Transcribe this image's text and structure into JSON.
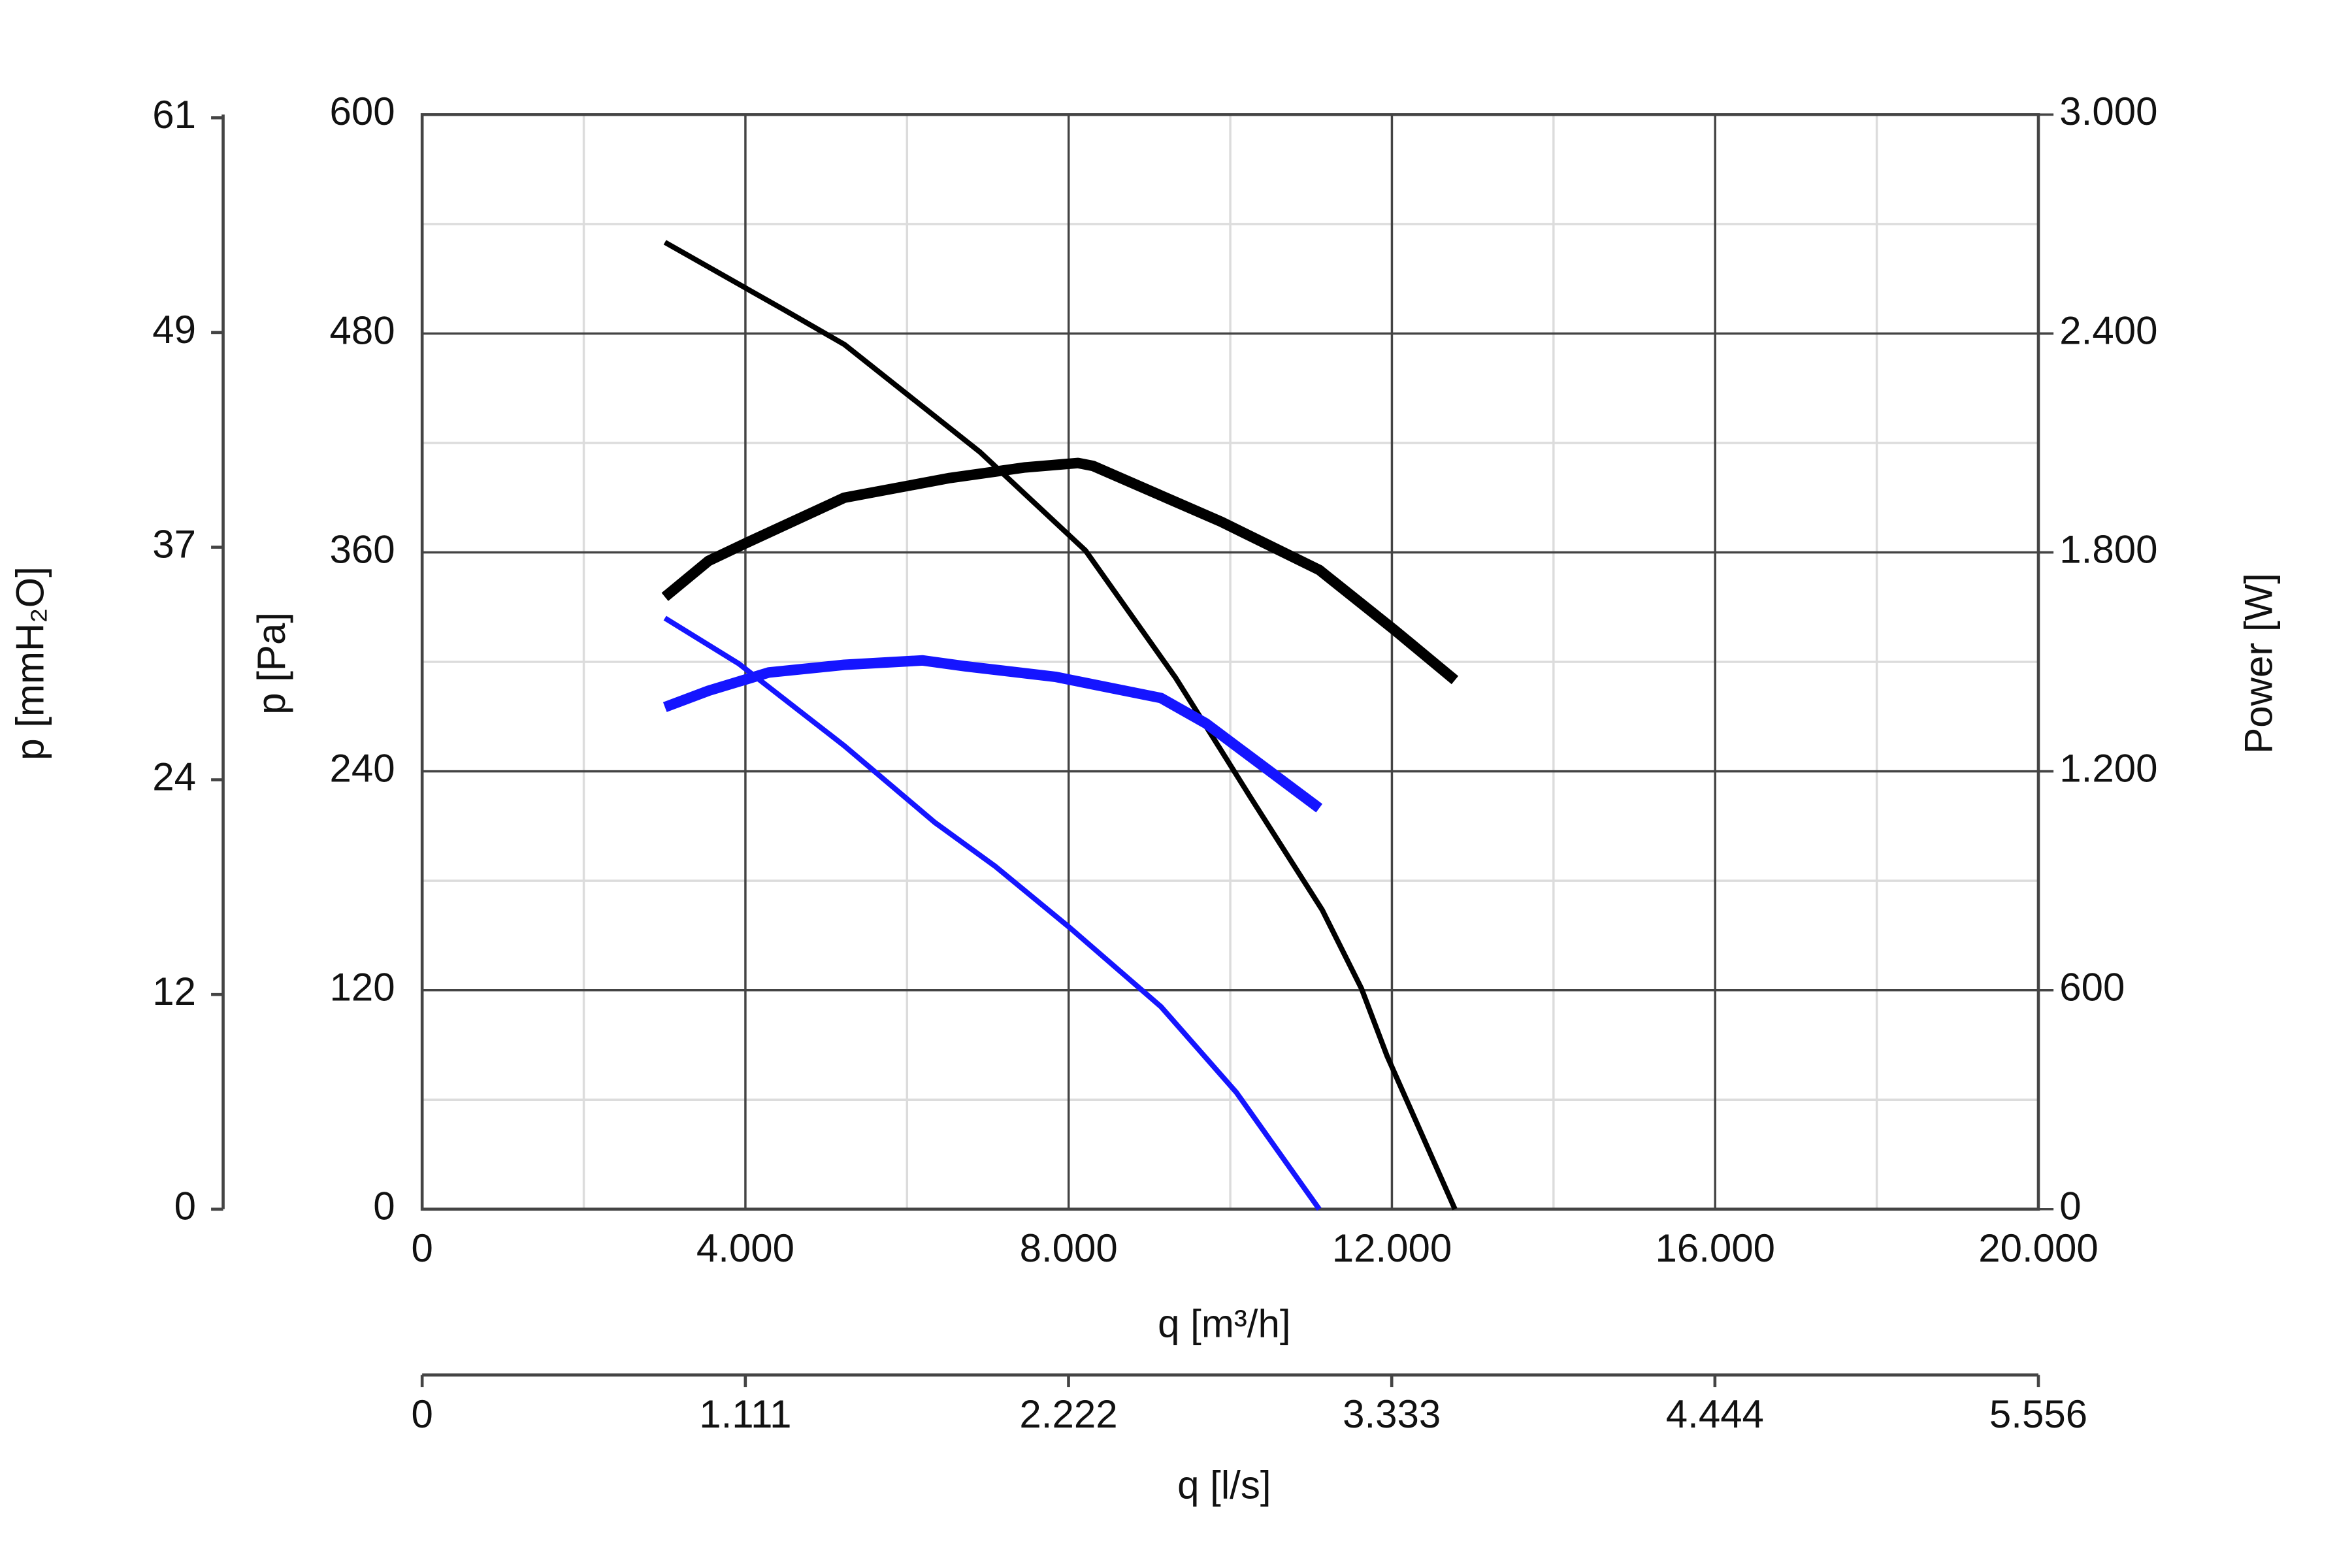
{
  "chart_data": {
    "type": "line",
    "x_label": "q [m³/h]",
    "xlim": [
      0,
      20000
    ],
    "xticks": [
      0,
      {
        "value": 4000,
        "label": "4.000"
      },
      {
        "value": 8000,
        "label": "8.000"
      },
      {
        "value": 12000,
        "label": "12.000"
      },
      {
        "value": 16000,
        "label": "16.000"
      },
      {
        "value": 20000,
        "label": "20.000"
      }
    ],
    "x2_label": "q [l/s]",
    "x2lim": [
      0,
      5.556
    ],
    "x2ticks": [
      0,
      1.111,
      2.222,
      3.333,
      4.444,
      5.556
    ],
    "y_label": "p [Pa]",
    "ylim": [
      0,
      600
    ],
    "yticks": [
      0,
      120,
      240,
      360,
      480,
      600
    ],
    "y2_label": "Power [W]",
    "y2lim": [
      0,
      3000
    ],
    "y2ticks": [
      0,
      600,
      {
        "value": 1200,
        "label": "1.200"
      },
      {
        "value": 1800,
        "label": "1.800"
      },
      {
        "value": 2400,
        "label": "2.400"
      },
      {
        "value": 3000,
        "label": "3.000"
      }
    ],
    "y3_label": "p [mmH₂O]",
    "y3lim": [
      0,
      61.18
    ],
    "y3ticks": [
      0,
      12,
      24,
      37,
      49,
      61
    ],
    "grid": true,
    "minor_grid": true,
    "series": [
      {
        "color": "#000000",
        "axis": "y",
        "x": [
          3004,
          4478,
          5224,
          6903,
          8209,
          9328,
          10261,
          11138,
          11623,
          11940,
          12780
        ],
        "values": [
          530,
          493,
          474,
          415,
          361,
          291,
          225,
          164,
          121,
          84,
          0
        ]
      },
      {
        "color": "#000000",
        "axis": "y2",
        "x": [
          3004,
          3545,
          4011,
          5224,
          6530,
          7463,
          8116,
          8302,
          9888,
          11101,
          12034,
          12780
        ],
        "values": [
          1678,
          1777,
          1826,
          1950,
          2004,
          2033,
          2045,
          2037,
          1884,
          1752,
          1587,
          1450
        ]
      },
      {
        "color": "#1515ff",
        "axis": "y",
        "x": [
          3004,
          3918,
          5224,
          6343,
          7090,
          8022,
          9142,
          10075,
          11101
        ],
        "values": [
          324,
          299,
          254,
          212,
          188,
          154,
          111,
          64,
          0
        ]
      },
      {
        "color": "#1515ff",
        "axis": "y2",
        "x": [
          3004,
          3545,
          4291,
          5224,
          6194,
          6716,
          7836,
          9142,
          9701,
          11101
        ],
        "values": [
          1376,
          1421,
          1471,
          1492,
          1504,
          1488,
          1459,
          1401,
          1331,
          1099
        ]
      }
    ]
  }
}
